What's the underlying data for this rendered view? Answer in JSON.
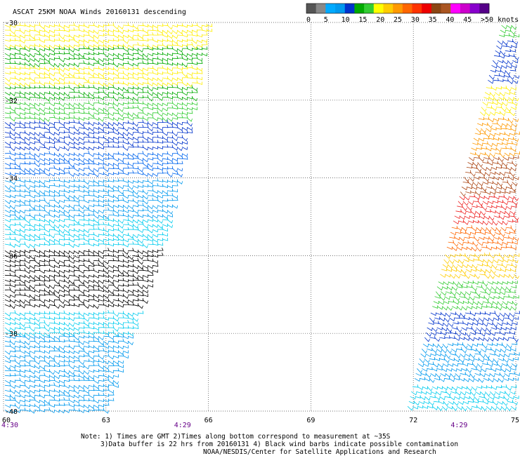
{
  "title": "ASCAT 25KM NOAA Winds 20160131 descending",
  "legend": {
    "labels": [
      "0",
      "5",
      "10",
      "15",
      "20",
      "25",
      "30",
      "35",
      "40",
      "45",
      ">50 knots"
    ],
    "colors": [
      "#555555",
      "#888888",
      "#00aaff",
      "#0099ee",
      "#0033cc",
      "#00aa00",
      "#33cc33",
      "#ffff00",
      "#ffcc00",
      "#ff9900",
      "#ff6600",
      "#ff3300",
      "#ee0000",
      "#8b4513",
      "#aa5522",
      "#ff00ff",
      "#cc00cc",
      "#8800cc",
      "#550088"
    ]
  },
  "latitude_ticks": [
    "-30",
    "-32",
    "-34",
    "-36",
    "-38",
    "-40"
  ],
  "longitude_ticks": [
    "60",
    "63",
    "66",
    "69",
    "72",
    "75"
  ],
  "times": [
    {
      "label": "4:30",
      "lon": 60
    },
    {
      "label": "4:29",
      "lon": 65.2
    },
    {
      "label": "4:29",
      "lon": 73.3
    }
  ],
  "notes": {
    "line1": "Note: 1) Times are GMT 2)Times along bottom correspond to measurement at ~35S",
    "line2": "3)Data buffer is 22 hrs from 20160131 4) Black wind barbs indicate possible contamination",
    "line3": "NOAA/NESDIS/Center for Satellite Applications and Research"
  },
  "map_extent": {
    "lon": [
      60,
      75
    ],
    "lat": [
      -30,
      -40
    ]
  },
  "swaths": [
    {
      "name": "west",
      "bands": [
        {
          "lat": [
            -30.0,
            -30.6
          ],
          "color": "#ffee00"
        },
        {
          "lat": [
            -30.6,
            -31.1
          ],
          "color": "#00aa00"
        },
        {
          "lat": [
            -31.1,
            -31.6
          ],
          "color": "#ffee00"
        },
        {
          "lat": [
            -31.6,
            -32.0
          ],
          "color": "#00aa00"
        },
        {
          "lat": [
            -32.0,
            -32.5
          ],
          "color": "#33cc33"
        },
        {
          "lat": [
            -32.5,
            -33.3
          ],
          "color": "#0033cc"
        },
        {
          "lat": [
            -33.3,
            -34.0
          ],
          "color": "#0066ee"
        },
        {
          "lat": [
            -34.0,
            -35.0
          ],
          "color": "#0099ee"
        },
        {
          "lat": [
            -35.0,
            -35.8
          ],
          "color": "#00ccee"
        },
        {
          "lat": [
            -35.8,
            -37.4
          ],
          "color": "#000000"
        },
        {
          "lat": [
            -37.4,
            -38.0
          ],
          "color": "#00ccee"
        },
        {
          "lat": [
            -38.0,
            -40.0
          ],
          "color": "#0099ee"
        }
      ]
    },
    {
      "name": "east",
      "bands": [
        {
          "lat": [
            -30.0,
            -30.4
          ],
          "color": "#33cc33"
        },
        {
          "lat": [
            -30.4,
            -31.6
          ],
          "color": "#0033cc"
        },
        {
          "lat": [
            -31.6,
            -32.4
          ],
          "color": "#ffee00"
        },
        {
          "lat": [
            -32.4,
            -33.4
          ],
          "color": "#ff9900"
        },
        {
          "lat": [
            -33.4,
            -34.4
          ],
          "color": "#aa4411"
        },
        {
          "lat": [
            -34.4,
            -35.2
          ],
          "color": "#ee2222"
        },
        {
          "lat": [
            -35.2,
            -35.9
          ],
          "color": "#ff6600"
        },
        {
          "lat": [
            -35.9,
            -36.6
          ],
          "color": "#ffcc00"
        },
        {
          "lat": [
            -36.6,
            -37.4
          ],
          "color": "#33cc33"
        },
        {
          "lat": [
            -37.4,
            -38.2
          ],
          "color": "#0033cc"
        },
        {
          "lat": [
            -38.2,
            -39.3
          ],
          "color": "#0099ee"
        },
        {
          "lat": [
            -39.3,
            -40.0
          ],
          "color": "#00ccee"
        }
      ]
    }
  ]
}
